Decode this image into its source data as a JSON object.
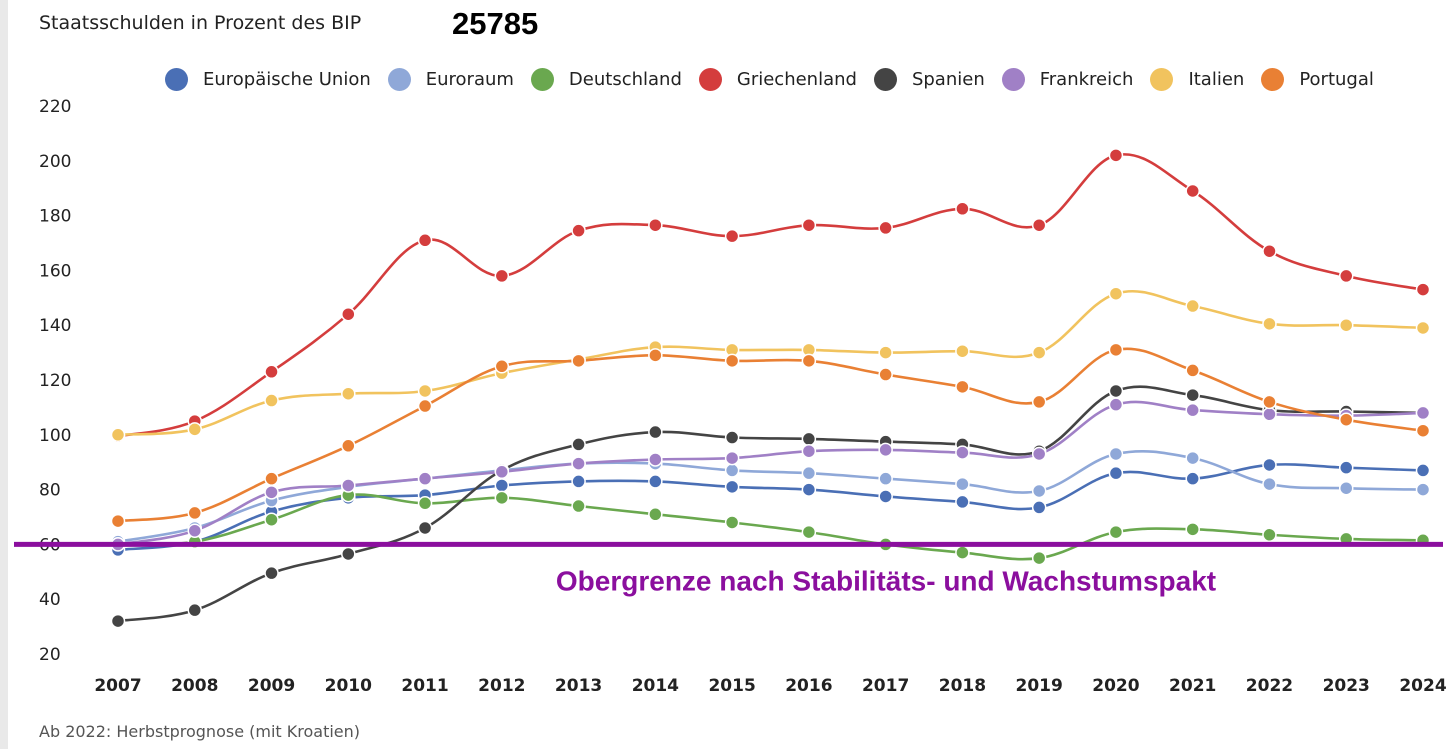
{
  "header": {
    "title": "Staatsschulden in Prozent des BIP",
    "counter": "25785"
  },
  "footnote": "Ab 2022: Herbstprognose (mit Kroatien)",
  "chart_data": {
    "type": "line",
    "ylim": [
      20,
      220
    ],
    "yticks": [
      20,
      40,
      60,
      80,
      100,
      120,
      140,
      160,
      180,
      200,
      220
    ],
    "categories": [
      "2007",
      "2008",
      "2009",
      "2010",
      "2011",
      "2012",
      "2013",
      "2014",
      "2015",
      "2016",
      "2017",
      "2018",
      "2019",
      "2020",
      "2021",
      "2022",
      "2023",
      "2024"
    ],
    "legend_position": "top",
    "grid": false,
    "series": [
      {
        "name": "Europäische Union",
        "color": "#4a6fb5",
        "values": [
          58,
          61,
          72,
          77,
          78,
          81.5,
          83,
          83,
          81,
          80,
          77.5,
          75.5,
          73.5,
          86,
          84,
          89,
          88,
          87
        ]
      },
      {
        "name": "Euroraum",
        "color": "#8fa8d8",
        "values": [
          61,
          66,
          76,
          81,
          84,
          87,
          89.5,
          89.5,
          87,
          86,
          84,
          82,
          79.5,
          93,
          91.5,
          82,
          80.5,
          80
        ]
      },
      {
        "name": "Deutschland",
        "color": "#6aa84f",
        "values": [
          60,
          61,
          69,
          78,
          75,
          77,
          74,
          71,
          68,
          64.5,
          60,
          57,
          55,
          64.5,
          65.5,
          63.5,
          62,
          61.5
        ]
      },
      {
        "name": "Griechenland",
        "color": "#d43d3d",
        "values": [
          99.5,
          105,
          123,
          144,
          171,
          158,
          174.5,
          176.5,
          172.5,
          176.5,
          175.5,
          182.5,
          176.5,
          202,
          189,
          167,
          158,
          153
        ]
      },
      {
        "name": "Spanien",
        "color": "#444444",
        "values": [
          32,
          36,
          49.5,
          56.5,
          66,
          87,
          96.5,
          101,
          99,
          98.5,
          97.5,
          96.5,
          94,
          116,
          114.5,
          109,
          108.5,
          108
        ]
      },
      {
        "name": "Frankreich",
        "color": "#a080c6",
        "values": [
          60,
          65,
          79,
          81.5,
          84,
          86.5,
          89.5,
          91,
          91.5,
          94,
          94.5,
          93.5,
          93,
          111,
          109,
          107.5,
          107,
          108
        ]
      },
      {
        "name": "Italien",
        "color": "#f1c35e",
        "values": [
          100,
          102,
          112.5,
          115,
          116,
          122.5,
          127.5,
          132,
          131,
          131,
          130,
          130.5,
          130,
          151.5,
          147,
          140.5,
          140,
          139
        ]
      },
      {
        "name": "Portugal",
        "color": "#e98034",
        "values": [
          68.5,
          71.5,
          84,
          96,
          110.5,
          125,
          127,
          129,
          127,
          127,
          122,
          117.5,
          112,
          131,
          123.5,
          112,
          105.5,
          101.5
        ]
      }
    ],
    "reference_line": {
      "value": 60,
      "color": "#8b0f9e",
      "label": "Obergrenze nach Stabilitäts- und Wachstumspakt"
    }
  }
}
